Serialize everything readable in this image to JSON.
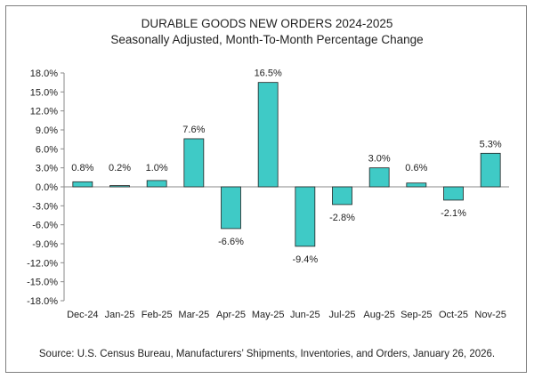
{
  "chart_data": {
    "type": "bar",
    "title": "DURABLE GOODS NEW ORDERS 2024-2025",
    "subtitle": "Seasonally Adjusted,  Month-To-Month Percentage Change",
    "source": "Source: U.S. Census Bureau, Manufacturers’ Shipments, Inventories, and Orders, January 26, 2026.",
    "categories": [
      "Dec-24",
      "Jan-25",
      "Feb-25",
      "Mar-25",
      "Apr-25",
      "May-25",
      "Jun-25",
      "Jul-25",
      "Aug-25",
      "Sep-25",
      "Oct-25",
      "Nov-25"
    ],
    "values": [
      0.8,
      0.2,
      1.0,
      7.6,
      -6.6,
      16.5,
      -9.4,
      -2.8,
      3.0,
      0.6,
      -2.1,
      5.3
    ],
    "data_labels": [
      "0.8%",
      "0.2%",
      "1.0%",
      "7.6%",
      "-6.6%",
      "16.5%",
      "-9.4%",
      "-2.8%",
      "3.0%",
      "0.6%",
      "-2.1%",
      "5.3%"
    ],
    "y_ticks": [
      18,
      15,
      12,
      9,
      6,
      3,
      0,
      -3,
      -6,
      -9,
      -12,
      -15,
      -18
    ],
    "y_tick_labels": [
      "18.0%",
      "15.0%",
      "12.0%",
      "9.0%",
      "6.0%",
      "3.0%",
      "0.0%",
      "-3.0%",
      "-6.0%",
      "-9.0%",
      "-12.0%",
      "-15.0%",
      "-18.0%"
    ],
    "ylim": [
      -18,
      18
    ],
    "xlabel": "",
    "ylabel": "",
    "grid": false,
    "bar_color": "#3fcac6"
  }
}
